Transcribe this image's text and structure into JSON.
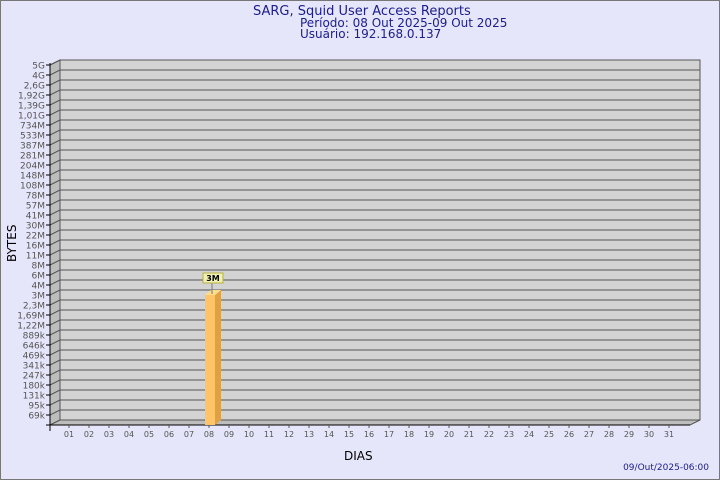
{
  "chart_data": {
    "type": "bar",
    "title": "SARG, Squid User Access Reports",
    "subtitle_period": "Período: 08 Out 2025-09 Out 2025",
    "subtitle_user": "Usuário: 192.168.0.137",
    "xlabel": "DIAS",
    "ylabel": "BYTES",
    "footer": "09/Out/2025-06:00",
    "y_scale": "log",
    "grid": true,
    "y_ticks": [
      "5G",
      "4G",
      "2,6G",
      "1,92G",
      "1,39G",
      "1,01G",
      "734M",
      "533M",
      "387M",
      "281M",
      "204M",
      "148M",
      "108M",
      "78M",
      "57M",
      "41M",
      "30M",
      "22M",
      "16M",
      "11M",
      "8M",
      "6M",
      "4M",
      "3M",
      "2,3M",
      "1,69M",
      "1,22M",
      "889k",
      "646k",
      "469k",
      "341k",
      "247k",
      "180k",
      "131k",
      "95k",
      "69k"
    ],
    "categories": [
      "01",
      "02",
      "03",
      "04",
      "05",
      "06",
      "07",
      "08",
      "09",
      "10",
      "11",
      "12",
      "13",
      "14",
      "15",
      "16",
      "17",
      "18",
      "19",
      "20",
      "21",
      "22",
      "23",
      "24",
      "25",
      "26",
      "27",
      "28",
      "29",
      "30",
      "31"
    ],
    "series": [
      {
        "values": [
          0,
          0,
          0,
          0,
          0,
          0,
          0,
          3000000,
          0,
          0,
          0,
          0,
          0,
          0,
          0,
          0,
          0,
          0,
          0,
          0,
          0,
          0,
          0,
          0,
          0,
          0,
          0,
          0,
          0,
          0,
          0
        ],
        "labels": {
          "08": "3M"
        }
      }
    ],
    "colors": {
      "background": "#e6e6fa",
      "plot": "#d3d3d3",
      "bar_front": "#fec467",
      "bar_side": "#dea245",
      "bar_top": "#ffdc8a",
      "title": "#1c1c8c",
      "label_box": "#f0f0b0"
    }
  }
}
